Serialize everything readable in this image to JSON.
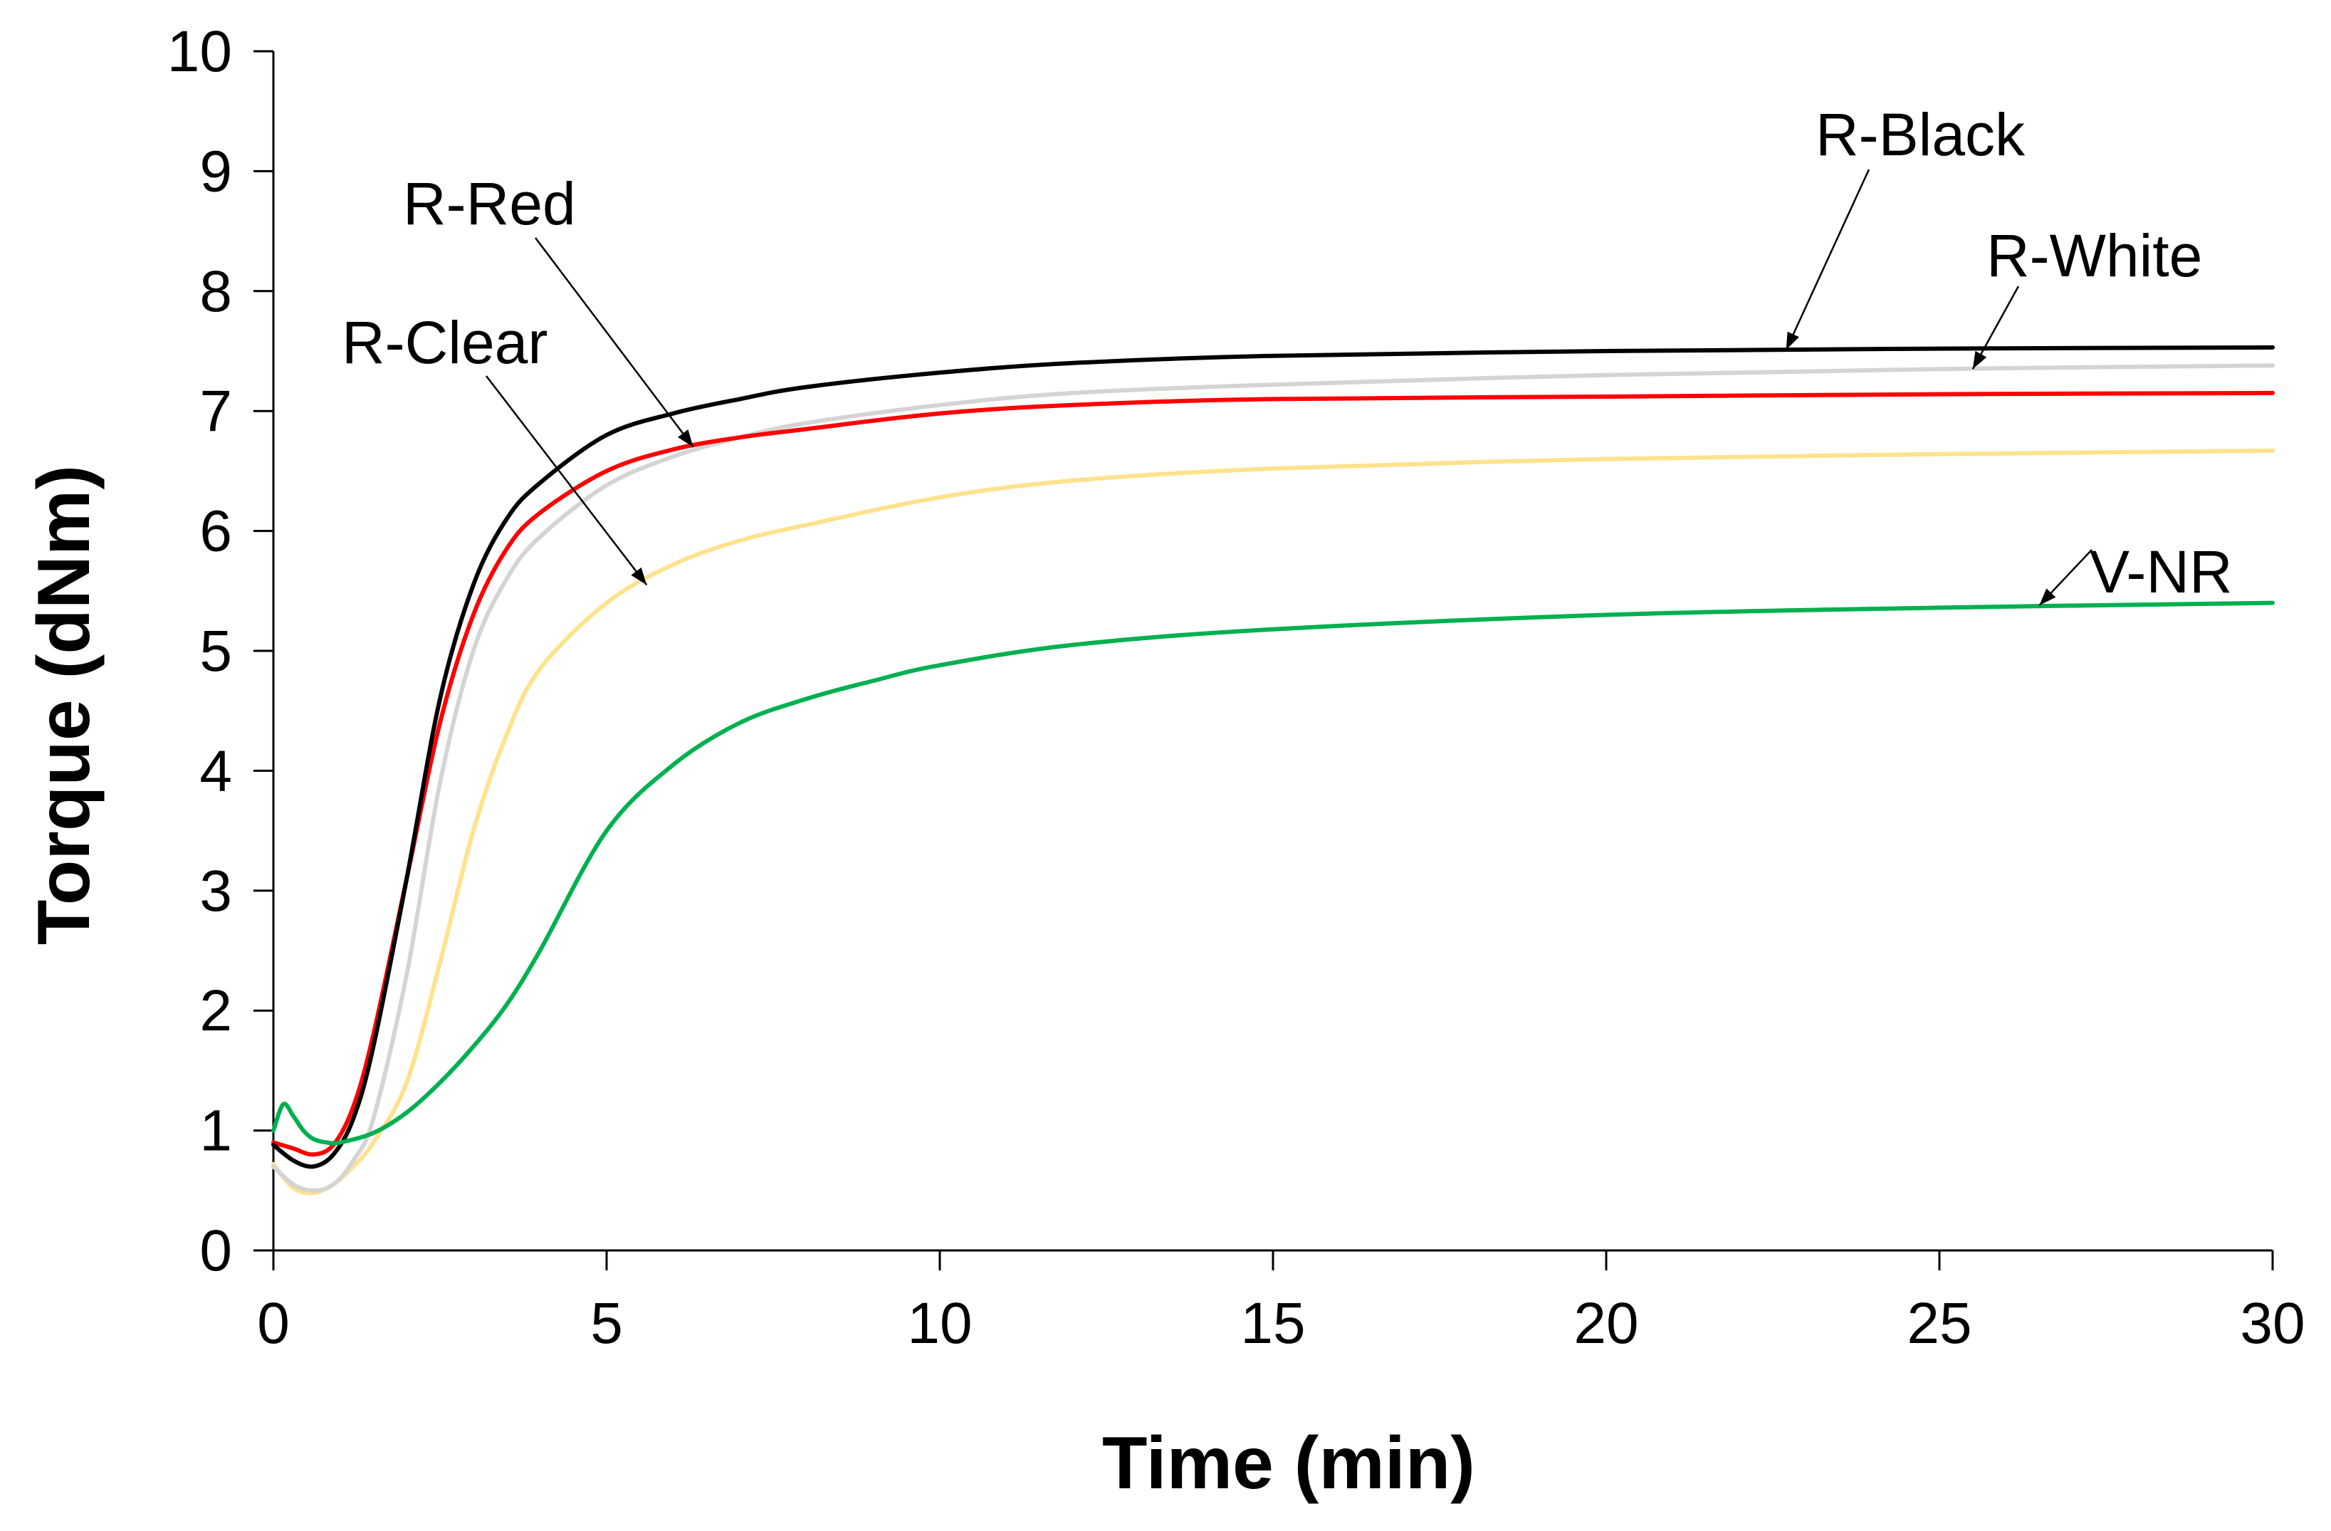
{
  "chart_data": {
    "type": "line",
    "title": "",
    "xlabel": "Time (min)",
    "ylabel": "Torque (dNm)",
    "xlim": [
      0,
      30
    ],
    "ylim": [
      0,
      10
    ],
    "xticks": [
      0,
      5,
      10,
      15,
      20,
      25,
      30
    ],
    "yticks": [
      0,
      1,
      2,
      3,
      4,
      5,
      6,
      7,
      8,
      9,
      10
    ],
    "grid": false,
    "legend": "none",
    "series": [
      {
        "name": "R-Black",
        "color": "#000000",
        "x": [
          0,
          0.3,
          0.6,
          0.9,
          1.2,
          1.5,
          2.0,
          2.5,
          3.0,
          3.5,
          4.0,
          5.0,
          6.0,
          7.0,
          8.0,
          10.0,
          12.0,
          15.0,
          20.0,
          25.0,
          30.0
        ],
        "y": [
          0.88,
          0.75,
          0.7,
          0.8,
          1.1,
          1.7,
          3.1,
          4.6,
          5.55,
          6.1,
          6.4,
          6.8,
          6.98,
          7.1,
          7.2,
          7.32,
          7.4,
          7.46,
          7.5,
          7.52,
          7.53
        ]
      },
      {
        "name": "R-White",
        "color": "#d4d4d4",
        "x": [
          0,
          0.3,
          0.6,
          0.9,
          1.2,
          1.5,
          2.0,
          2.5,
          3.0,
          3.5,
          4.0,
          5.0,
          6.0,
          7.0,
          8.0,
          10.0,
          12.0,
          15.0,
          20.0,
          25.0,
          30.0
        ],
        "y": [
          0.7,
          0.55,
          0.5,
          0.55,
          0.75,
          1.1,
          2.3,
          3.9,
          5.0,
          5.6,
          5.95,
          6.38,
          6.62,
          6.78,
          6.9,
          7.05,
          7.15,
          7.22,
          7.3,
          7.35,
          7.38
        ]
      },
      {
        "name": "R-Red",
        "color": "#ff0000",
        "x": [
          0,
          0.3,
          0.6,
          0.9,
          1.2,
          1.5,
          2.0,
          2.5,
          3.0,
          3.5,
          4.0,
          5.0,
          6.0,
          7.0,
          8.0,
          10.0,
          12.0,
          15.0,
          20.0,
          25.0,
          30.0
        ],
        "y": [
          0.9,
          0.85,
          0.8,
          0.88,
          1.2,
          1.8,
          3.1,
          4.4,
          5.3,
          5.85,
          6.15,
          6.5,
          6.68,
          6.78,
          6.85,
          6.98,
          7.05,
          7.1,
          7.12,
          7.14,
          7.15
        ]
      },
      {
        "name": "R-Clear",
        "color": "#ffe28c",
        "x": [
          0,
          0.3,
          0.6,
          0.9,
          1.2,
          1.5,
          2.0,
          2.5,
          3.0,
          3.5,
          4.0,
          5.0,
          6.0,
          7.0,
          8.0,
          10.0,
          12.0,
          15.0,
          20.0,
          25.0,
          30.0
        ],
        "y": [
          0.72,
          0.52,
          0.48,
          0.55,
          0.7,
          0.9,
          1.4,
          2.4,
          3.5,
          4.3,
          4.85,
          5.4,
          5.72,
          5.92,
          6.05,
          6.28,
          6.42,
          6.52,
          6.6,
          6.64,
          6.67
        ]
      },
      {
        "name": "V-NR",
        "color": "#00b050",
        "x": [
          0,
          0.15,
          0.3,
          0.45,
          0.6,
          0.8,
          1.0,
          1.5,
          2.0,
          2.5,
          3.0,
          3.5,
          4.0,
          5.0,
          6.0,
          7.0,
          8.0,
          9.0,
          10.0,
          12.0,
          15.0,
          20.0,
          25.0,
          30.0
        ],
        "y": [
          1.0,
          1.22,
          1.12,
          1.0,
          0.93,
          0.9,
          0.9,
          0.98,
          1.15,
          1.4,
          1.7,
          2.05,
          2.5,
          3.5,
          4.05,
          4.4,
          4.6,
          4.75,
          4.88,
          5.05,
          5.18,
          5.3,
          5.36,
          5.4
        ]
      }
    ],
    "annotations": [
      {
        "text": "R-Black",
        "target_series": "R-Black",
        "target_x": 22.7,
        "target_y": 7.51
      },
      {
        "text": "R-White",
        "target_series": "R-White",
        "target_x": 25.5,
        "target_y": 7.35
      },
      {
        "text": "R-Red",
        "target_series": "R-Red",
        "target_x": 6.3,
        "target_y": 6.7
      },
      {
        "text": "R-Clear",
        "target_series": "R-Clear",
        "target_x": 5.6,
        "target_y": 5.55
      },
      {
        "text": "V-NR",
        "target_series": "V-NR",
        "target_x": 26.5,
        "target_y": 5.38
      }
    ]
  }
}
